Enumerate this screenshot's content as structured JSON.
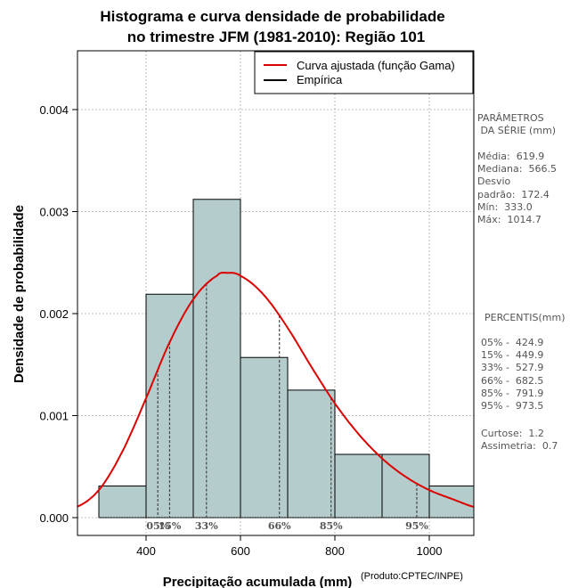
{
  "chart_data": {
    "type": "bar",
    "title": "Histograma e curva densidade de probabilidade",
    "subtitle": "no trimestre JFM (1981-2010): Região 101",
    "xlabel": "Precipitação acumulada (mm)",
    "ylabel": "Densidade de probabilidade",
    "credit": "(Produto:CPTEC/INPE)",
    "xlim": [
      250,
      1100
    ],
    "ylim": [
      0,
      0.0046
    ],
    "x_ticks": [
      400,
      600,
      800,
      1000
    ],
    "y_ticks": [
      "0.000",
      "0.001",
      "0.002",
      "0.003",
      "0.004"
    ],
    "y_tick_values": [
      0,
      0.001,
      0.002,
      0.003,
      0.004
    ],
    "grid": true,
    "bins": [
      {
        "start": 300,
        "end": 400,
        "value": 0.00031
      },
      {
        "start": 400,
        "end": 500,
        "value": 0.00219
      },
      {
        "start": 500,
        "end": 600,
        "value": 0.00312
      },
      {
        "start": 600,
        "end": 700,
        "value": 0.00157
      },
      {
        "start": 700,
        "end": 800,
        "value": 0.00125
      },
      {
        "start": 800,
        "end": 900,
        "value": 0.00062
      },
      {
        "start": 900,
        "end": 1000,
        "value": 0.00062
      },
      {
        "start": 1000,
        "end": 1100,
        "value": 0.00031
      }
    ],
    "fitted_curve": {
      "name": "Curva ajustada (função Gama)",
      "color": "#dd0000",
      "x": [
        250,
        300,
        350,
        400,
        450,
        500,
        550,
        570,
        600,
        650,
        700,
        750,
        800,
        850,
        900,
        950,
        1000,
        1050,
        1100
      ],
      "y": [
        0.0001,
        0.00027,
        0.00065,
        0.00117,
        0.00172,
        0.00214,
        0.00237,
        0.0024,
        0.00237,
        0.00218,
        0.00186,
        0.00148,
        0.00112,
        0.00082,
        0.00058,
        0.0004,
        0.00027,
        0.00018,
        0.0001
      ]
    },
    "percentile_lines": [
      {
        "label": "05%",
        "value": 424.9
      },
      {
        "label": "15%",
        "value": 449.9
      },
      {
        "label": "33%",
        "value": 527.9
      },
      {
        "label": "66%",
        "value": 682.5
      },
      {
        "label": "85%",
        "value": 791.9
      },
      {
        "label": "95%",
        "value": 973.5
      }
    ],
    "legend": [
      {
        "label": "Curva ajustada (função Gama)",
        "color": "#dd0000"
      },
      {
        "label": "Empírica",
        "color": "#000000"
      }
    ],
    "legend_position": "top-right",
    "bar_color": "#b4cccc"
  },
  "side_panel": {
    "params_heading": "PARÂMETROS\n DA SÉRIE (mm)",
    "params_text": "Média:  619.9\nMediana:  566.5\nDesvio\npadrão:  172.4\nMín:  333.0\nMáx:  1014.7",
    "percentis_heading": "PERCENTIS(mm)",
    "percentis_text": "05% -  424.9\n15% -  449.9\n33% -  527.9\n66% -  682.5\n85% -  791.9\n95% -  973.5",
    "stats_text": "Curtose:  1.2\nAssimetria:  0.7"
  }
}
